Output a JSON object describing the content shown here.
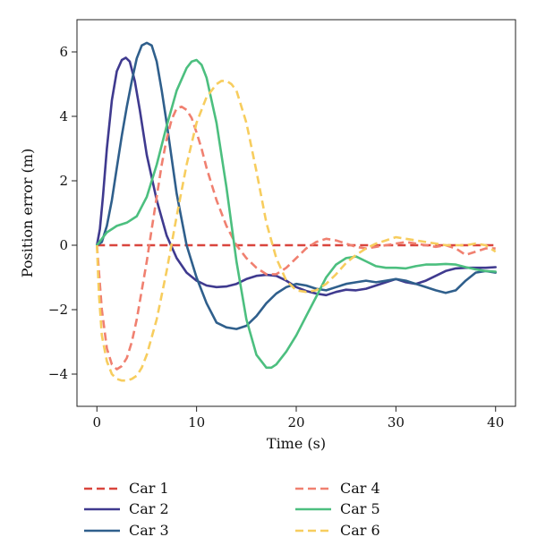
{
  "chart_data": {
    "type": "line",
    "title": "",
    "xlabel": "Time (s)",
    "ylabel": "Position error (m)",
    "xlim": [
      -2,
      42
    ],
    "ylim": [
      -5,
      7
    ],
    "xticks": [
      0,
      10,
      20,
      30,
      40
    ],
    "yticks": [
      -4,
      -2,
      0,
      2,
      4,
      6
    ],
    "grid": false,
    "legend_position": "bottom",
    "series": [
      {
        "name": "Car 1",
        "color": "#d9453d",
        "dash": "dashed",
        "x": [
          0,
          40
        ],
        "y": [
          0,
          0
        ]
      },
      {
        "name": "Car 2",
        "color": "#3f3a8f",
        "dash": "solid",
        "x": [
          0,
          0.3,
          0.6,
          1,
          1.5,
          2,
          2.5,
          2.9,
          3.3,
          3.8,
          4.3,
          5,
          6,
          7,
          8,
          9,
          10,
          11,
          12,
          13,
          14,
          15,
          16,
          17,
          18,
          19,
          20,
          21,
          22,
          23,
          24,
          25,
          26,
          27,
          28,
          29,
          30,
          31,
          32,
          33,
          34,
          35,
          36,
          37,
          38,
          39,
          40
        ],
        "y": [
          0,
          0.5,
          1.5,
          3,
          4.5,
          5.4,
          5.75,
          5.82,
          5.7,
          5.1,
          4.2,
          2.8,
          1.4,
          0.3,
          -0.4,
          -0.85,
          -1.1,
          -1.25,
          -1.3,
          -1.28,
          -1.2,
          -1.05,
          -0.95,
          -0.92,
          -0.95,
          -1.1,
          -1.3,
          -1.42,
          -1.5,
          -1.55,
          -1.45,
          -1.38,
          -1.4,
          -1.35,
          -1.25,
          -1.15,
          -1.05,
          -1.15,
          -1.2,
          -1.1,
          -0.95,
          -0.8,
          -0.72,
          -0.7,
          -0.7,
          -0.7,
          -0.68
        ]
      },
      {
        "name": "Car 3",
        "color": "#2f5f8c",
        "dash": "solid",
        "x": [
          0,
          0.5,
          1,
          1.5,
          2,
          2.5,
          3,
          3.5,
          4,
          4.5,
          5,
          5.5,
          6,
          6.5,
          7,
          7.5,
          8,
          9,
          10,
          11,
          12,
          13,
          14,
          15,
          16,
          17,
          18,
          19,
          20,
          21,
          22,
          23,
          24,
          25,
          26,
          27,
          28,
          29,
          30,
          31,
          32,
          33,
          34,
          35,
          36,
          37,
          38,
          39,
          40
        ],
        "y": [
          0,
          0.1,
          0.6,
          1.4,
          2.4,
          3.4,
          4.3,
          5.1,
          5.8,
          6.2,
          6.28,
          6.2,
          5.7,
          4.8,
          3.8,
          2.7,
          1.6,
          0,
          -1,
          -1.8,
          -2.4,
          -2.55,
          -2.6,
          -2.5,
          -2.2,
          -1.8,
          -1.5,
          -1.3,
          -1.2,
          -1.25,
          -1.35,
          -1.4,
          -1.3,
          -1.2,
          -1.15,
          -1.1,
          -1.15,
          -1.1,
          -1.05,
          -1.1,
          -1.2,
          -1.3,
          -1.4,
          -1.48,
          -1.4,
          -1.1,
          -0.85,
          -0.8,
          -0.85
        ]
      },
      {
        "name": "Car 4",
        "color": "#f08070",
        "dash": "dashed",
        "x": [
          0,
          0.5,
          1,
          1.5,
          2,
          2.5,
          3,
          3.5,
          4,
          4.5,
          5,
          5.5,
          6,
          6.5,
          7,
          7.5,
          8,
          8.5,
          9,
          9.5,
          10,
          10.5,
          11,
          12,
          13,
          14,
          15,
          16,
          17,
          18,
          19,
          20,
          21,
          22,
          23,
          24,
          25,
          26,
          27,
          28,
          29,
          30,
          31,
          32,
          33,
          34,
          35,
          36,
          37,
          38,
          39,
          40
        ],
        "y": [
          0,
          -2,
          -3.2,
          -3.7,
          -3.85,
          -3.75,
          -3.5,
          -3,
          -2.3,
          -1.4,
          -0.5,
          0.5,
          1.5,
          2.5,
          3.3,
          3.9,
          4.25,
          4.3,
          4.2,
          3.95,
          3.5,
          3,
          2.4,
          1.4,
          0.6,
          0,
          -0.4,
          -0.7,
          -0.9,
          -0.9,
          -0.7,
          -0.4,
          -0.1,
          0.1,
          0.2,
          0.15,
          0.05,
          -0.05,
          -0.1,
          -0.05,
          0,
          0.05,
          0.1,
          0.05,
          0,
          -0.05,
          0,
          -0.1,
          -0.3,
          -0.2,
          -0.1,
          -0.1
        ]
      },
      {
        "name": "Car 5",
        "color": "#4cbf7f",
        "dash": "solid",
        "x": [
          0,
          0.5,
          1,
          2,
          3,
          4,
          4.5,
          5,
          6,
          7,
          8,
          9,
          9.5,
          10,
          10.5,
          11,
          12,
          13,
          14,
          15,
          16,
          17,
          17.5,
          18,
          19,
          20,
          21,
          22,
          23,
          24,
          25,
          26,
          27,
          28,
          29,
          30,
          31,
          32,
          33,
          34,
          35,
          36,
          37,
          38,
          39,
          40
        ],
        "y": [
          0,
          0.2,
          0.4,
          0.6,
          0.7,
          0.9,
          1.2,
          1.5,
          2.5,
          3.7,
          4.8,
          5.5,
          5.7,
          5.75,
          5.6,
          5.2,
          3.8,
          1.8,
          -0.5,
          -2.3,
          -3.4,
          -3.8,
          -3.8,
          -3.7,
          -3.3,
          -2.8,
          -2.2,
          -1.6,
          -1,
          -0.6,
          -0.4,
          -0.35,
          -0.5,
          -0.65,
          -0.7,
          -0.7,
          -0.72,
          -0.65,
          -0.6,
          -0.6,
          -0.58,
          -0.6,
          -0.68,
          -0.75,
          -0.8,
          -0.82
        ]
      },
      {
        "name": "Car 6",
        "color": "#f7cd5e",
        "dash": "dashed",
        "x": [
          0,
          0.2,
          0.5,
          1,
          1.5,
          2,
          2.5,
          3,
          3.5,
          4,
          4.5,
          5,
          6,
          7,
          8,
          9,
          10,
          11,
          12,
          12.5,
          13,
          13.5,
          14,
          15,
          16,
          17,
          18,
          19,
          20,
          21,
          22,
          23,
          24,
          25,
          26,
          27,
          28,
          29,
          30,
          31,
          32,
          33,
          34,
          35,
          36,
          37,
          38,
          39,
          40
        ],
        "y": [
          0,
          -1.5,
          -2.8,
          -3.6,
          -4,
          -4.15,
          -4.2,
          -4.2,
          -4.15,
          -4.05,
          -3.8,
          -3.4,
          -2.3,
          -0.8,
          0.9,
          2.5,
          3.8,
          4.6,
          5,
          5.1,
          5.1,
          5,
          4.8,
          3.8,
          2.3,
          0.7,
          -0.4,
          -1.1,
          -1.4,
          -1.45,
          -1.4,
          -1.2,
          -0.9,
          -0.55,
          -0.3,
          -0.1,
          0.05,
          0.15,
          0.25,
          0.2,
          0.15,
          0.1,
          0.05,
          0,
          0,
          0,
          0.05,
          0,
          -0.2
        ]
      }
    ]
  }
}
